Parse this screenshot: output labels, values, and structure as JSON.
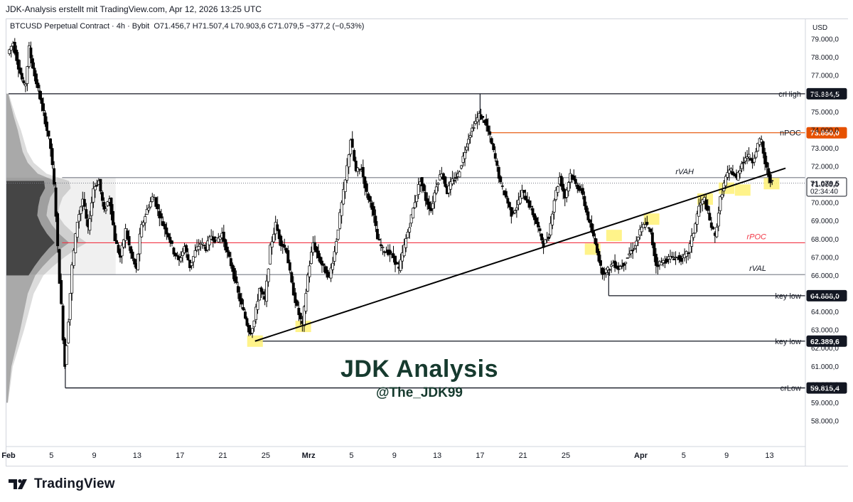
{
  "header": {
    "title": "JDK-Analysis erstellt mit TradingView.com, Apr 12, 2026 13:25 UTC"
  },
  "legend": {
    "symbol": "BTCUSD Perpetual Contract · 4h · Bybit",
    "ohlc": "O71.456,7  H71.507,4  L70.903,6  C71.079,5  −377,2 (−0,53%)"
  },
  "watermark": {
    "title": "JDK Analysis",
    "handle": "@The_JDK99"
  },
  "footer": {
    "brand": "TradingView"
  },
  "colors": {
    "candle_up": "#ffffff",
    "candle_down": "#000000",
    "price_line": "#5d606b",
    "npoc": "#e65100",
    "rpoc": "#f23645",
    "highlight": "#fff176",
    "current_price_bg": "#ffffff"
  },
  "chart_data": {
    "type": "candlestick",
    "timeframe": "4h",
    "currency_label": "USD",
    "y_axis": {
      "range": [
        57500,
        79500
      ],
      "ticks": [
        "58.000,0",
        "59.000,0",
        "60.000,0",
        "61.000,0",
        "62.000,0",
        "63.000,0",
        "64.000,0",
        "65.000,0",
        "66.000,0",
        "67.000,0",
        "68.000,0",
        "69.000,0",
        "70.000,0",
        "71.000,0",
        "72.000,0",
        "73.000,0",
        "74.000,0",
        "75.000,0",
        "76.000,0",
        "77.000,0",
        "78.000,0",
        "79.000,0"
      ],
      "tick_values": [
        58000,
        59000,
        60000,
        61000,
        62000,
        63000,
        64000,
        65000,
        66000,
        67000,
        68000,
        69000,
        70000,
        71000,
        72000,
        73000,
        74000,
        75000,
        76000,
        77000,
        78000,
        79000
      ]
    },
    "x_axis": {
      "ticks": [
        {
          "label": "Feb",
          "day": 1,
          "bold": true
        },
        {
          "label": "5",
          "day": 5
        },
        {
          "label": "9",
          "day": 9
        },
        {
          "label": "13",
          "day": 13
        },
        {
          "label": "17",
          "day": 17
        },
        {
          "label": "21",
          "day": 21
        },
        {
          "label": "25",
          "day": 25
        },
        {
          "label": "Mrz",
          "day": 29,
          "bold": true
        },
        {
          "label": "5",
          "day": 33
        },
        {
          "label": "9",
          "day": 37
        },
        {
          "label": "13",
          "day": 41
        },
        {
          "label": "17",
          "day": 45
        },
        {
          "label": "21",
          "day": 49
        },
        {
          "label": "25",
          "day": 53
        },
        {
          "label": "Apr",
          "day": 60,
          "bold": true
        },
        {
          "label": "5",
          "day": 64
        },
        {
          "label": "9",
          "day": 68
        },
        {
          "label": "13",
          "day": 72
        }
      ],
      "day_range": [
        1,
        72.5
      ]
    },
    "price_path": [
      [
        1,
        78200
      ],
      [
        1.5,
        78800
      ],
      [
        2,
        77500
      ],
      [
        2.6,
        76200
      ],
      [
        3,
        78500
      ],
      [
        3.5,
        77000
      ],
      [
        4,
        75800
      ],
      [
        4.5,
        74500
      ],
      [
        5,
        73000
      ],
      [
        5.4,
        70500
      ],
      [
        5.8,
        66000
      ],
      [
        6.1,
        63500
      ],
      [
        6.3,
        60800
      ],
      [
        6.6,
        63000
      ],
      [
        7,
        66500
      ],
      [
        7.5,
        69000
      ],
      [
        8,
        70200
      ],
      [
        8.5,
        68500
      ],
      [
        9,
        70800
      ],
      [
        9.5,
        71200
      ],
      [
        10,
        69500
      ],
      [
        10.5,
        70300
      ],
      [
        11,
        68000
      ],
      [
        11.5,
        67000
      ],
      [
        12,
        68500
      ],
      [
        12.5,
        67200
      ],
      [
        13,
        66300
      ],
      [
        13.4,
        68500
      ],
      [
        14,
        69600
      ],
      [
        14.6,
        70400
      ],
      [
        15,
        69600
      ],
      [
        15.5,
        68800
      ],
      [
        16,
        68200
      ],
      [
        16.5,
        67300
      ],
      [
        17,
        66800
      ],
      [
        17.5,
        67600
      ],
      [
        18,
        66500
      ],
      [
        18.5,
        67300
      ],
      [
        19,
        67800
      ],
      [
        19.5,
        67500
      ],
      [
        20,
        68200
      ],
      [
        20.5,
        67900
      ],
      [
        21,
        68300
      ],
      [
        21.5,
        67200
      ],
      [
        22,
        66300
      ],
      [
        22.5,
        65000
      ],
      [
        23,
        64000
      ],
      [
        23.6,
        62800
      ],
      [
        24,
        63500
      ],
      [
        24.5,
        65300
      ],
      [
        25,
        64600
      ],
      [
        25.5,
        67500
      ],
      [
        26,
        68800
      ],
      [
        26.5,
        67800
      ],
      [
        27,
        67400
      ],
      [
        27.5,
        65500
      ],
      [
        28,
        64200
      ],
      [
        28.5,
        63200
      ],
      [
        29,
        66000
      ],
      [
        29.5,
        67800
      ],
      [
        30,
        67000
      ],
      [
        30.5,
        66400
      ],
      [
        31,
        65900
      ],
      [
        31.5,
        67300
      ],
      [
        32,
        69300
      ],
      [
        32.5,
        71200
      ],
      [
        33,
        73500
      ],
      [
        33.5,
        71700
      ],
      [
        34,
        71900
      ],
      [
        34.5,
        70500
      ],
      [
        35,
        69800
      ],
      [
        35.5,
        68000
      ],
      [
        36,
        67400
      ],
      [
        36.5,
        67300
      ],
      [
        37,
        67000
      ],
      [
        37.5,
        66300
      ],
      [
        38,
        67600
      ],
      [
        38.5,
        68800
      ],
      [
        39,
        70100
      ],
      [
        39.5,
        71300
      ],
      [
        40,
        70200
      ],
      [
        40.5,
        69600
      ],
      [
        41,
        71000
      ],
      [
        41.5,
        71700
      ],
      [
        42,
        70600
      ],
      [
        42.5,
        71200
      ],
      [
        43,
        71500
      ],
      [
        43.5,
        72500
      ],
      [
        44,
        73600
      ],
      [
        44.5,
        74300
      ],
      [
        45,
        74800
      ],
      [
        45.5,
        74500
      ],
      [
        46,
        73600
      ],
      [
        46.5,
        72400
      ],
      [
        47,
        71000
      ],
      [
        47.5,
        70300
      ],
      [
        48,
        69400
      ],
      [
        48.5,
        69800
      ],
      [
        49,
        70600
      ],
      [
        49.5,
        70100
      ],
      [
        50,
        69400
      ],
      [
        50.5,
        68600
      ],
      [
        51,
        67700
      ],
      [
        51.5,
        68200
      ],
      [
        52,
        70200
      ],
      [
        52.5,
        71400
      ],
      [
        53,
        70300
      ],
      [
        53.5,
        71600
      ],
      [
        54,
        71000
      ],
      [
        54.5,
        70700
      ],
      [
        55,
        69500
      ],
      [
        55.5,
        68400
      ],
      [
        56,
        67400
      ],
      [
        56.4,
        66200
      ],
      [
        57,
        66300
      ],
      [
        57.5,
        66700
      ],
      [
        58,
        66400
      ],
      [
        58.5,
        66700
      ],
      [
        59,
        67200
      ],
      [
        59.5,
        67600
      ],
      [
        60,
        68400
      ],
      [
        60.5,
        68900
      ],
      [
        61,
        68300
      ],
      [
        61.5,
        66600
      ],
      [
        62,
        66700
      ],
      [
        62.5,
        66900
      ],
      [
        63,
        67000
      ],
      [
        63.5,
        67000
      ],
      [
        64,
        66900
      ],
      [
        64.5,
        67300
      ],
      [
        65,
        68400
      ],
      [
        65.5,
        69800
      ],
      [
        66,
        70200
      ],
      [
        66.5,
        69000
      ],
      [
        67,
        68100
      ],
      [
        67.5,
        70200
      ],
      [
        68,
        71400
      ],
      [
        68.5,
        71800
      ],
      [
        69,
        71300
      ],
      [
        69.5,
        72200
      ],
      [
        70,
        72600
      ],
      [
        70.5,
        72300
      ],
      [
        71,
        73200
      ],
      [
        71.3,
        73500
      ],
      [
        71.6,
        72300
      ],
      [
        72,
        71500
      ],
      [
        72.3,
        71079.5
      ]
    ],
    "levels": [
      {
        "name": "crHigh",
        "value": 75994.5,
        "label": "75.994,5",
        "from_day": 1,
        "style": "black"
      },
      {
        "name": "nPOC",
        "value": 73850.0,
        "label": "73.850,0",
        "from_day": 46,
        "style": "orange"
      },
      {
        "name": "rVAH",
        "value": 71380,
        "label": "",
        "from_day": 6,
        "style": "grey"
      },
      {
        "name": "rPOC",
        "value": 67800,
        "label": "",
        "from_day": 6,
        "style": "red"
      },
      {
        "name": "rVAL",
        "value": 66050,
        "label": "",
        "from_day": 6,
        "style": "grey"
      },
      {
        "name": "key low",
        "value": 64888.0,
        "label": "64.888,0",
        "from_day": 57,
        "style": "black"
      },
      {
        "name": "key low",
        "value": 62389.6,
        "label": "62.389,6",
        "from_day": 24,
        "style": "black"
      },
      {
        "name": "crLow",
        "value": 59815.4,
        "label": "59.815,4",
        "from_day": 6.3,
        "style": "black"
      }
    ],
    "level_text": {
      "crHigh": "crHigh",
      "nPOC": "nPOC",
      "rVAH": "rVAH",
      "rPOC": "rPOC",
      "rVAL": "rVAL",
      "key_low_1": "key low",
      "key_low_2": "key low",
      "crLow": "crLow"
    },
    "current_price": {
      "value": 71079.5,
      "label": "71.079,5",
      "countdown": "02:34:40"
    },
    "trendline": {
      "from": [
        24,
        62389.6
      ],
      "to": [
        73.5,
        71900
      ]
    },
    "highlights": [
      [
        24,
        62389.6
      ],
      [
        28.5,
        63200
      ],
      [
        55.5,
        67450
      ],
      [
        57.5,
        68200
      ],
      [
        61,
        69100
      ],
      [
        66,
        70200
      ],
      [
        68,
        70800
      ],
      [
        69.5,
        70700
      ],
      [
        72.2,
        71050
      ]
    ],
    "volume_profile": {
      "anchor_day": 5.0,
      "max_width_days": 7.5,
      "bins": [
        [
          59000,
          0.02
        ],
        [
          60000,
          0.05
        ],
        [
          61000,
          0.08
        ],
        [
          62000,
          0.15
        ],
        [
          63000,
          0.22
        ],
        [
          64000,
          0.28
        ],
        [
          65000,
          0.34
        ],
        [
          66000,
          0.46
        ],
        [
          66500,
          0.58
        ],
        [
          67000,
          0.72
        ],
        [
          67500,
          0.88
        ],
        [
          67800,
          1.0
        ],
        [
          68300,
          0.84
        ],
        [
          68800,
          0.72
        ],
        [
          69300,
          0.64
        ],
        [
          69800,
          0.66
        ],
        [
          70300,
          0.7
        ],
        [
          70800,
          0.8
        ],
        [
          71200,
          0.78
        ],
        [
          71600,
          0.5
        ],
        [
          72200,
          0.34
        ],
        [
          72800,
          0.26
        ],
        [
          73400,
          0.22
        ],
        [
          74000,
          0.18
        ],
        [
          74700,
          0.12
        ],
        [
          75400,
          0.07
        ],
        [
          76000,
          0.03
        ]
      ]
    }
  }
}
